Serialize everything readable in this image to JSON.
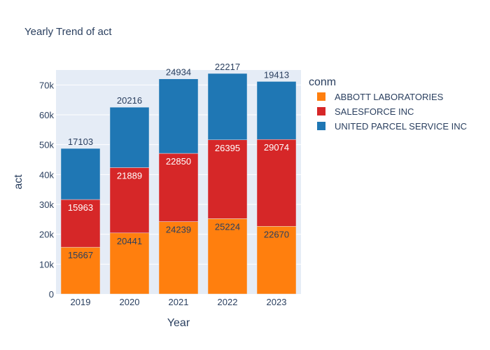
{
  "chart_data": {
    "type": "bar",
    "stacked": true,
    "title": "Yearly Trend of act",
    "xlabel": "Year",
    "ylabel": "act",
    "categories": [
      "2019",
      "2020",
      "2021",
      "2022",
      "2023"
    ],
    "ylim": [
      0,
      75000
    ],
    "yticks": [
      0,
      10000,
      20000,
      30000,
      40000,
      50000,
      60000,
      70000
    ],
    "ytick_labels": [
      "0",
      "10k",
      "20k",
      "30k",
      "40k",
      "50k",
      "60k",
      "70k"
    ],
    "grid": true,
    "legend": {
      "title": "conm",
      "position": "right"
    },
    "series": [
      {
        "name": "ABBOTT LABORATORIES",
        "color": "#ff7f0e",
        "label_color": "#2a3f5f",
        "values": [
          15667,
          20441,
          24239,
          25224,
          22670
        ]
      },
      {
        "name": "SALESFORCE INC",
        "color": "#d62728",
        "label_color": "#ffffff",
        "values": [
          15963,
          21889,
          22850,
          26395,
          29074
        ]
      },
      {
        "name": "UNITED PARCEL SERVICE INC",
        "color": "#1f77b4",
        "label_color": "#2a3f5f",
        "values": [
          17103,
          20216,
          24934,
          22217,
          19413
        ]
      }
    ]
  }
}
